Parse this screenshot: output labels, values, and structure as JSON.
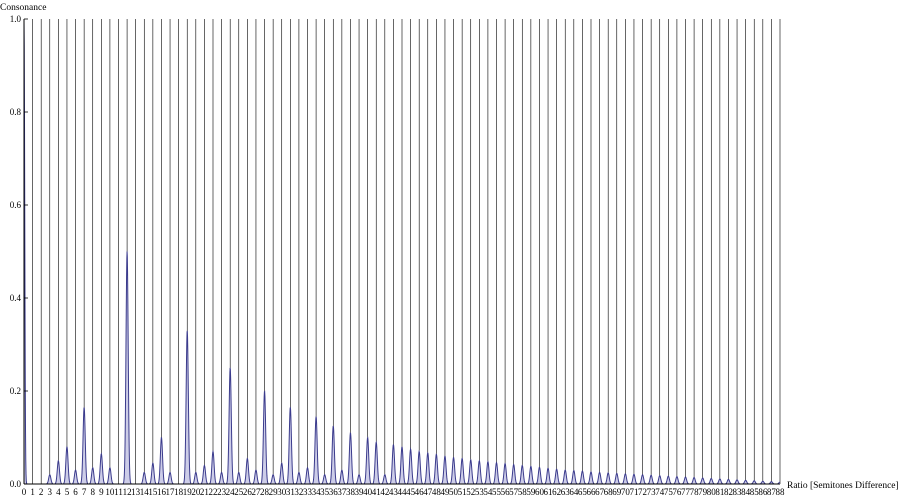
{
  "chart_data": {
    "type": "area",
    "title": "",
    "xlabel": "Ratio [Semitones Difference]",
    "ylabel": "Consonance",
    "xlim": [
      0,
      88
    ],
    "ylim": [
      0,
      1.0
    ],
    "x_ticks": [
      0,
      1,
      2,
      3,
      4,
      5,
      6,
      7,
      8,
      9,
      10,
      11,
      12,
      13,
      14,
      15,
      16,
      17,
      18,
      19,
      20,
      21,
      22,
      23,
      24,
      25,
      26,
      27,
      28,
      29,
      30,
      31,
      32,
      33,
      34,
      35,
      36,
      37,
      38,
      39,
      40,
      41,
      42,
      43,
      44,
      45,
      46,
      47,
      48,
      49,
      50,
      51,
      52,
      53,
      54,
      55,
      56,
      57,
      58,
      59,
      60,
      61,
      62,
      63,
      64,
      65,
      66,
      67,
      68,
      69,
      70,
      71,
      72,
      73,
      74,
      75,
      76,
      77,
      78,
      79,
      80,
      81,
      82,
      83,
      84,
      85,
      86,
      87,
      88
    ],
    "y_ticks": [
      "0.0",
      "0.2",
      "0.4",
      "0.6",
      "0.8",
      "1.0"
    ],
    "grid": "vertical lines at every x tick",
    "colors": {
      "line": "#3b3b8c",
      "fill": "#cdcde8",
      "grid": "#000000"
    },
    "series": [
      {
        "peaks": [
          {
            "x": 0,
            "y": 1.0
          },
          {
            "x": 3,
            "y": 0.02
          },
          {
            "x": 4,
            "y": 0.05
          },
          {
            "x": 5,
            "y": 0.08
          },
          {
            "x": 6,
            "y": 0.03
          },
          {
            "x": 7,
            "y": 0.165
          },
          {
            "x": 8,
            "y": 0.035
          },
          {
            "x": 9,
            "y": 0.065
          },
          {
            "x": 10,
            "y": 0.035
          },
          {
            "x": 12,
            "y": 0.5
          },
          {
            "x": 14,
            "y": 0.025
          },
          {
            "x": 15,
            "y": 0.045
          },
          {
            "x": 16,
            "y": 0.1
          },
          {
            "x": 17,
            "y": 0.025
          },
          {
            "x": 19,
            "y": 0.33
          },
          {
            "x": 20,
            "y": 0.025
          },
          {
            "x": 21,
            "y": 0.04
          },
          {
            "x": 22,
            "y": 0.07
          },
          {
            "x": 23,
            "y": 0.025
          },
          {
            "x": 24,
            "y": 0.25
          },
          {
            "x": 25,
            "y": 0.025
          },
          {
            "x": 26,
            "y": 0.055
          },
          {
            "x": 27,
            "y": 0.03
          },
          {
            "x": 28,
            "y": 0.2
          },
          {
            "x": 29,
            "y": 0.02
          },
          {
            "x": 30,
            "y": 0.045
          },
          {
            "x": 31,
            "y": 0.165
          },
          {
            "x": 32,
            "y": 0.025
          },
          {
            "x": 33,
            "y": 0.035
          },
          {
            "x": 34,
            "y": 0.145
          },
          {
            "x": 35,
            "y": 0.02
          },
          {
            "x": 36,
            "y": 0.125
          },
          {
            "x": 37,
            "y": 0.03
          },
          {
            "x": 38,
            "y": 0.11
          },
          {
            "x": 39,
            "y": 0.02
          },
          {
            "x": 40,
            "y": 0.1
          },
          {
            "x": 41,
            "y": 0.09
          },
          {
            "x": 42,
            "y": 0.02
          },
          {
            "x": 43,
            "y": 0.085
          },
          {
            "x": 44,
            "y": 0.08
          },
          {
            "x": 45,
            "y": 0.075
          },
          {
            "x": 46,
            "y": 0.07
          },
          {
            "x": 47,
            "y": 0.067
          },
          {
            "x": 48,
            "y": 0.064
          },
          {
            "x": 49,
            "y": 0.06
          },
          {
            "x": 50,
            "y": 0.057
          },
          {
            "x": 51,
            "y": 0.055
          },
          {
            "x": 52,
            "y": 0.052
          },
          {
            "x": 53,
            "y": 0.05
          },
          {
            "x": 54,
            "y": 0.048
          },
          {
            "x": 55,
            "y": 0.046
          },
          {
            "x": 56,
            "y": 0.044
          },
          {
            "x": 57,
            "y": 0.042
          },
          {
            "x": 58,
            "y": 0.04
          },
          {
            "x": 59,
            "y": 0.038
          },
          {
            "x": 60,
            "y": 0.036
          },
          {
            "x": 61,
            "y": 0.034
          },
          {
            "x": 62,
            "y": 0.032
          },
          {
            "x": 63,
            "y": 0.03
          },
          {
            "x": 64,
            "y": 0.029
          },
          {
            "x": 65,
            "y": 0.028
          },
          {
            "x": 66,
            "y": 0.026
          },
          {
            "x": 67,
            "y": 0.025
          },
          {
            "x": 68,
            "y": 0.024
          },
          {
            "x": 69,
            "y": 0.023
          },
          {
            "x": 70,
            "y": 0.022
          },
          {
            "x": 71,
            "y": 0.021
          },
          {
            "x": 72,
            "y": 0.02
          },
          {
            "x": 73,
            "y": 0.019
          },
          {
            "x": 74,
            "y": 0.018
          },
          {
            "x": 75,
            "y": 0.017
          },
          {
            "x": 76,
            "y": 0.016
          },
          {
            "x": 77,
            "y": 0.015
          },
          {
            "x": 78,
            "y": 0.014
          },
          {
            "x": 79,
            "y": 0.013
          },
          {
            "x": 80,
            "y": 0.012
          },
          {
            "x": 81,
            "y": 0.011
          },
          {
            "x": 82,
            "y": 0.01
          },
          {
            "x": 83,
            "y": 0.009
          },
          {
            "x": 84,
            "y": 0.008
          },
          {
            "x": 85,
            "y": 0.007
          },
          {
            "x": 86,
            "y": 0.006
          },
          {
            "x": 87,
            "y": 0.005
          },
          {
            "x": 88,
            "y": 0.004
          }
        ]
      }
    ]
  }
}
